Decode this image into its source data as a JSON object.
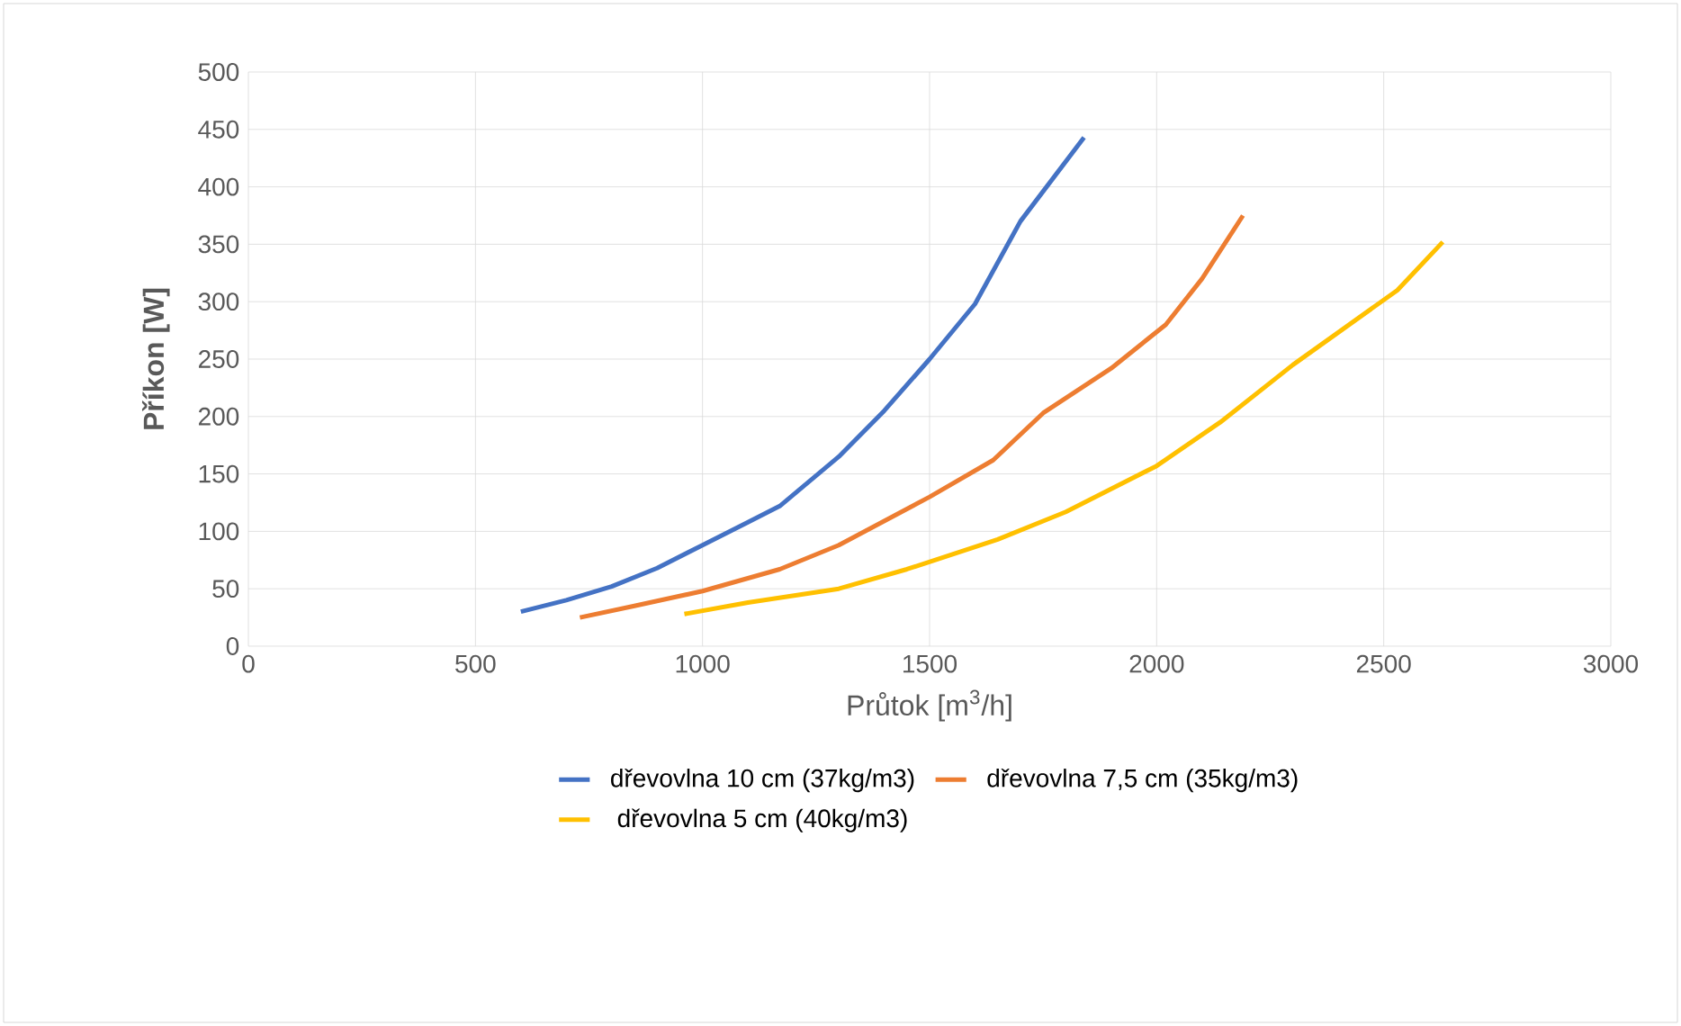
{
  "chart_data": {
    "type": "line",
    "xlabel": "Průtok [m$^{3}$/h]",
    "ylabel": "Příkon [W]",
    "xlim": [
      0,
      3000
    ],
    "xticks": [
      0,
      500,
      1000,
      1500,
      2000,
      2500,
      3000
    ],
    "ylim": [
      0,
      500
    ],
    "yticks": [
      0,
      50,
      100,
      150,
      200,
      250,
      300,
      350,
      400,
      450,
      500
    ],
    "grid": true,
    "legend": "bottom",
    "marker": "none",
    "line_style": "solid",
    "series": [
      {
        "name": "dřevovlna 10 cm (37kg/m3)",
        "color": "#4472c4",
        "x": [
          600,
          700,
          800,
          900,
          1000,
          1100,
          1170,
          1300,
          1400,
          1500,
          1600,
          1700,
          1840
        ],
        "values": [
          30,
          40,
          52,
          68,
          88,
          108,
          122,
          165,
          205,
          250,
          298,
          370,
          443
        ]
      },
      {
        "name": "dřevovlna 7,5 cm (35kg/m3)",
        "color": "#ed7d31",
        "x": [
          730,
          850,
          1000,
          1170,
          1300,
          1500,
          1640,
          1750,
          1900,
          2020,
          2100,
          2190
        ],
        "values": [
          25,
          35,
          48,
          67,
          88,
          130,
          162,
          203,
          242,
          280,
          320,
          375
        ]
      },
      {
        "name": "dřevovlna 5 cm (40kg/m3)",
        "color": "#ffc000",
        "x": [
          960,
          1100,
          1300,
          1450,
          1650,
          1800,
          2000,
          2140,
          2300,
          2530,
          2630
        ],
        "values": [
          28,
          38,
          50,
          67,
          93,
          117,
          157,
          195,
          245,
          310,
          352
        ]
      }
    ]
  }
}
